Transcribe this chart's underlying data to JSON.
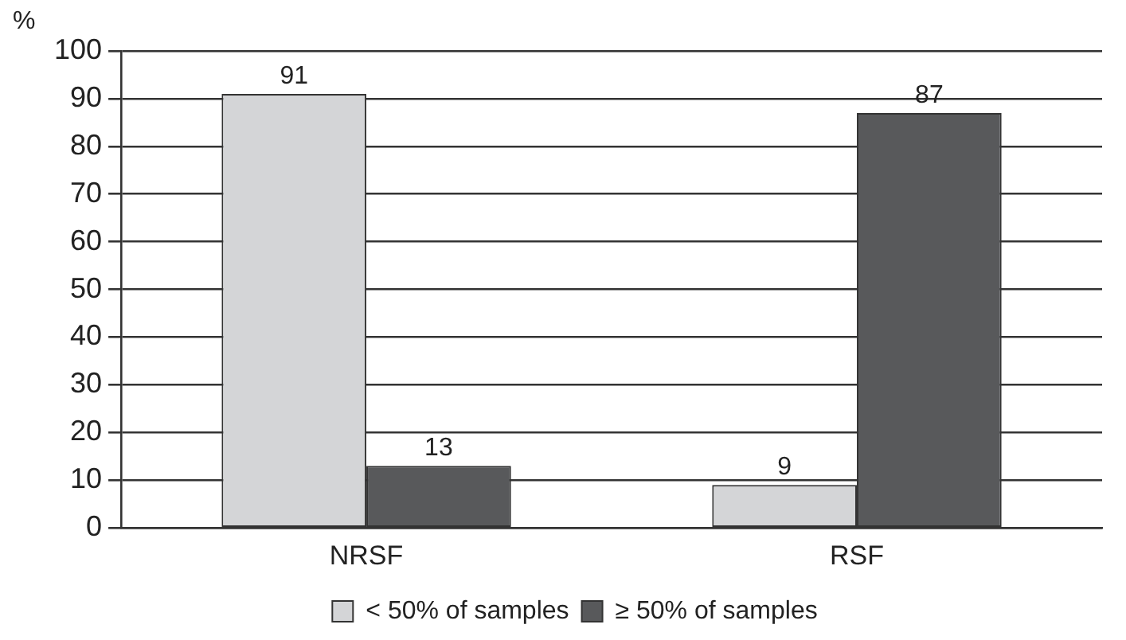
{
  "chart_data": {
    "type": "bar",
    "ylabel": "%",
    "categories": [
      "NRSF",
      "RSF"
    ],
    "series": [
      {
        "name": "< 50% of samples",
        "color": "#d4d5d7",
        "values": [
          91,
          9
        ]
      },
      {
        "name": "≥ 50% of samples",
        "color": "#58595b",
        "values": [
          13,
          87
        ]
      }
    ],
    "ylim": [
      0,
      100
    ],
    "yticks": [
      0,
      10,
      20,
      30,
      40,
      50,
      60,
      70,
      80,
      90,
      100
    ],
    "grid": "y",
    "legend": "bottom",
    "data_labels": true
  }
}
